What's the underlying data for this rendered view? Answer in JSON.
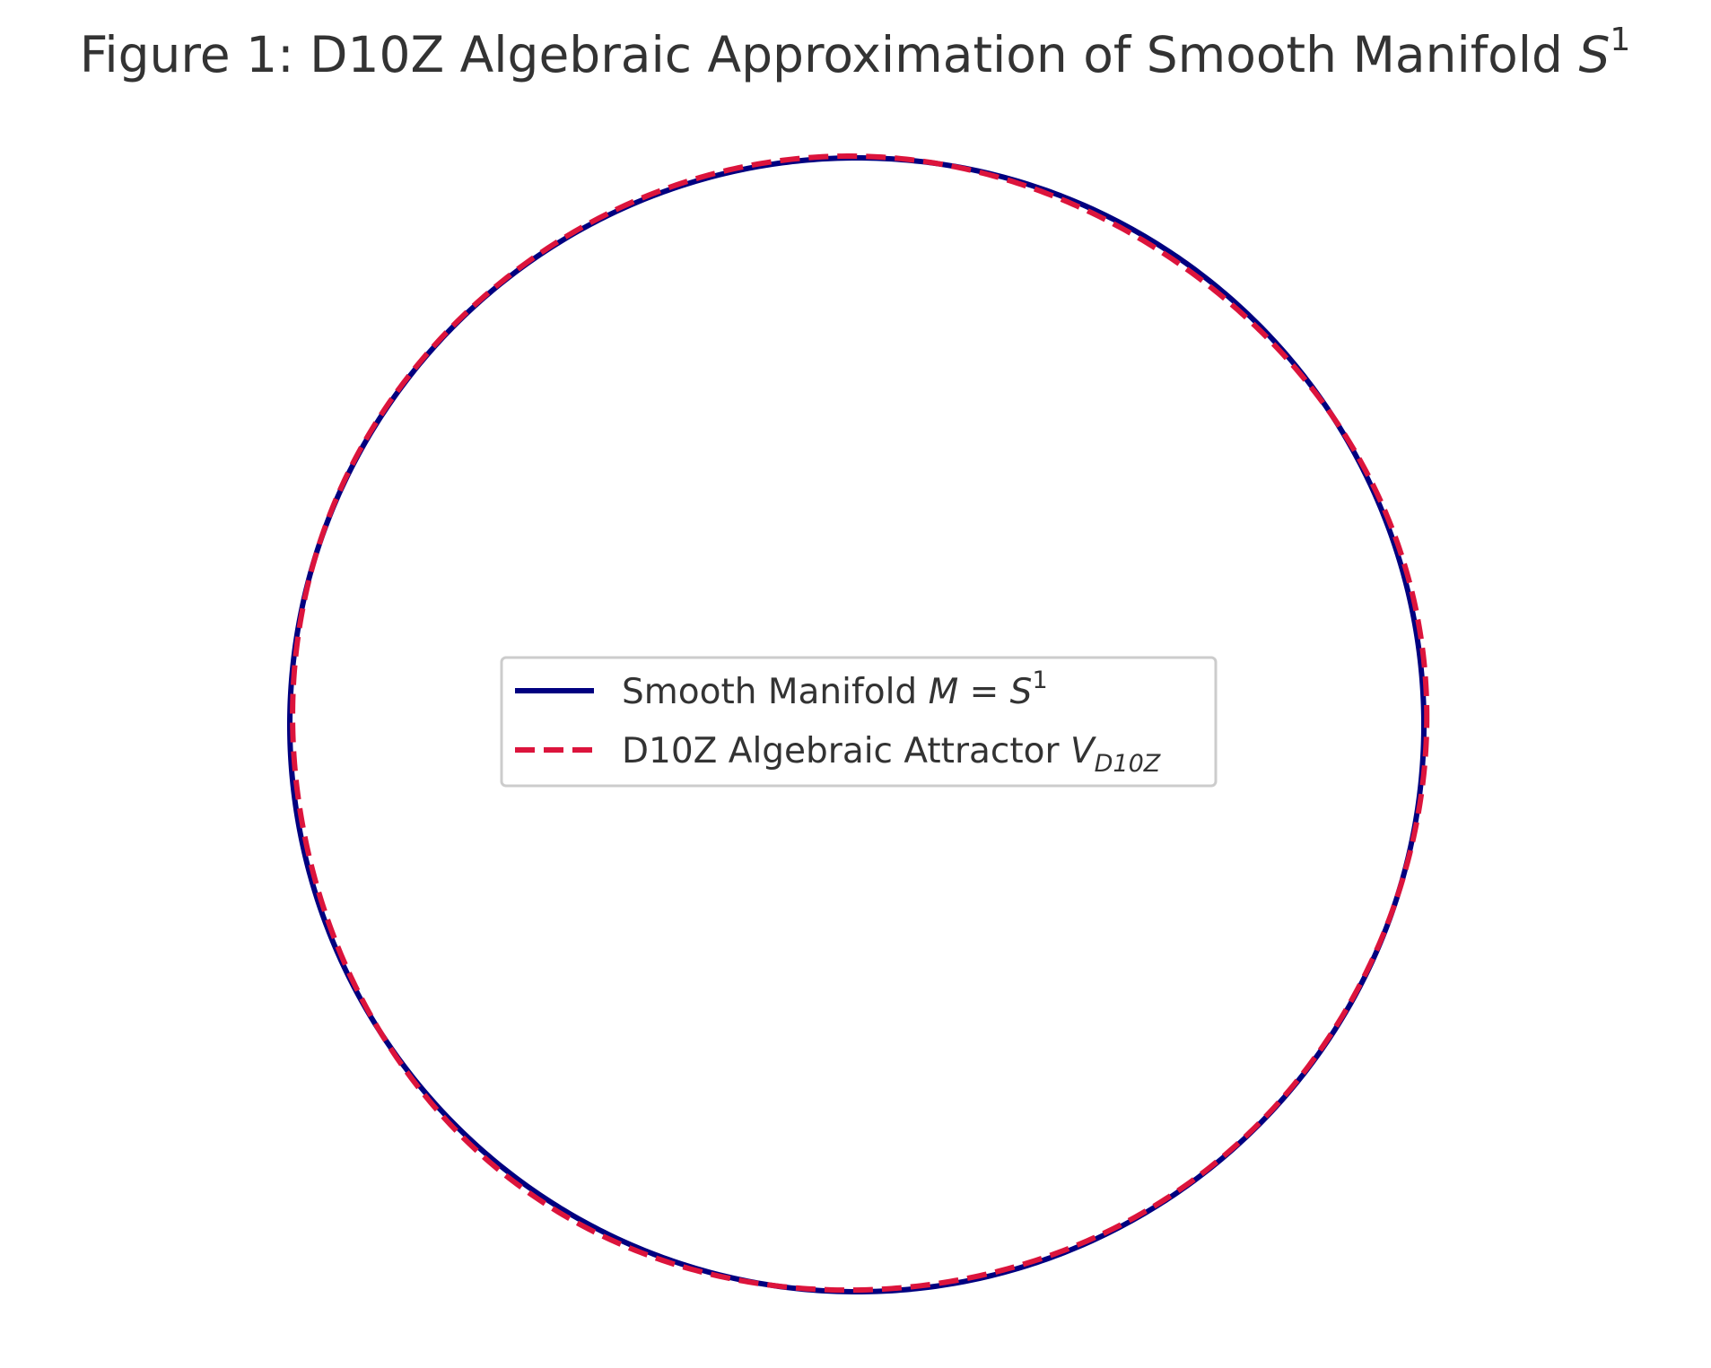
{
  "chart_data": {
    "type": "line",
    "title": {
      "prefix": "Figure 1: D10Z Algebraic Approximation of Smooth Manifold ",
      "math_base": "S",
      "math_sup": "1"
    },
    "xlabel": "",
    "ylabel": "",
    "axes_visible": false,
    "grid": false,
    "aspect": "equal",
    "xlim": [
      -1.05,
      1.05
    ],
    "ylim": [
      -1.05,
      1.05
    ],
    "legend_position": "center",
    "series": [
      {
        "key": "smooth",
        "name": {
          "text": "Smooth Manifold ",
          "math": "M = S",
          "math_sup": "1"
        },
        "color": "#000080",
        "style": "solid",
        "shape": "unit circle x = cos θ, y = sin θ",
        "radius": 1.0
      },
      {
        "key": "attractor",
        "name": {
          "text": "D10Z Algebraic Attractor ",
          "math": "V",
          "math_sub": "D10Z"
        },
        "color": "#DC143C",
        "style": "dashed",
        "shape": "perturbed circle r(θ) = 1 + 0.005·cos 3θ + 0.003·sin 5θ",
        "radius": 1.0,
        "amp_cos3": 0.005,
        "amp_sin5": 0.003
      }
    ]
  }
}
